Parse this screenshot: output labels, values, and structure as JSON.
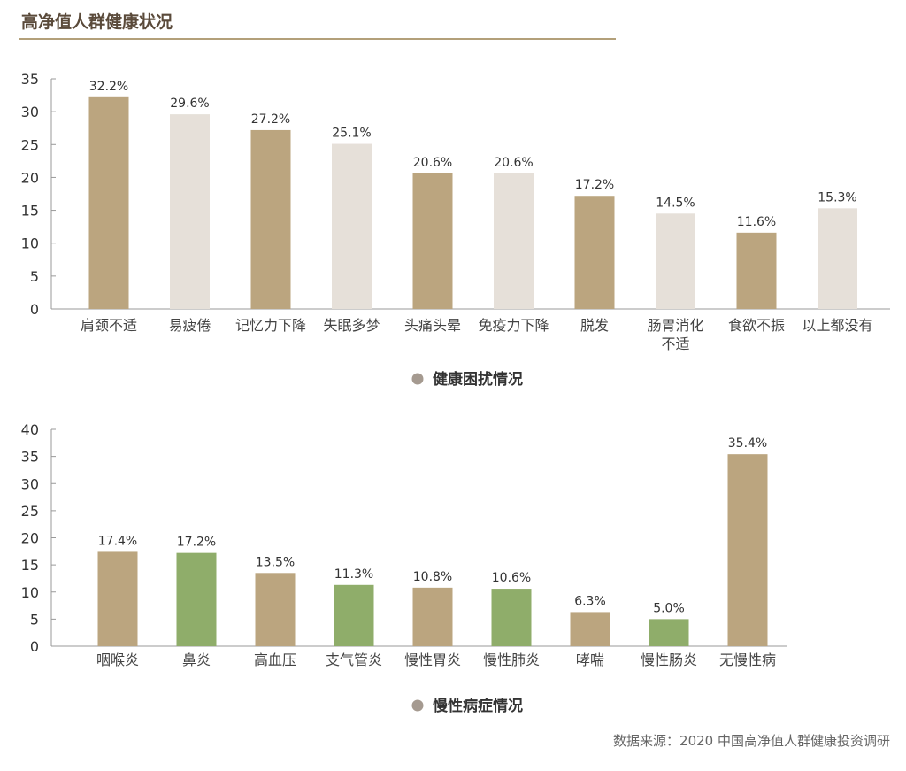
{
  "page": {
    "title": "高净值人群健康状况",
    "source": "数据来源：2020 中国高净值人群健康投资调研"
  },
  "colors": {
    "tan": "#bba57f",
    "light": "#e6e0d9",
    "green": "#8fad6a",
    "legend_dot": "#a59a90",
    "axis": "#999999"
  },
  "chart_data": [
    {
      "type": "bar",
      "legend": "健康困扰情况",
      "categories": [
        [
          "肩颈不适"
        ],
        [
          "易疲倦"
        ],
        [
          "记忆力下降"
        ],
        [
          "失眠多梦"
        ],
        [
          "头痛头晕"
        ],
        [
          "免疫力下降"
        ],
        [
          "脱发"
        ],
        [
          "肠胃消化",
          "不适"
        ],
        [
          "食欲不振"
        ],
        [
          "以上都没有"
        ]
      ],
      "values": [
        32.2,
        29.6,
        27.2,
        25.1,
        20.6,
        20.6,
        17.2,
        14.5,
        11.6,
        15.3
      ],
      "value_labels": [
        "32.2%",
        "29.6%",
        "27.2%",
        "25.1%",
        "20.6%",
        "20.6%",
        "17.2%",
        "14.5%",
        "11.6%",
        "15.3%"
      ],
      "bar_colors": [
        "tan",
        "light",
        "tan",
        "light",
        "tan",
        "light",
        "tan",
        "light",
        "tan",
        "light"
      ],
      "ylim": [
        0,
        35
      ],
      "yticks": [
        0,
        5,
        10,
        15,
        20,
        25,
        30,
        35
      ]
    },
    {
      "type": "bar",
      "legend": "慢性病症情况",
      "categories": [
        [
          "咽喉炎"
        ],
        [
          "鼻炎"
        ],
        [
          "高血压"
        ],
        [
          "支气管炎"
        ],
        [
          "慢性胃炎"
        ],
        [
          "慢性肺炎"
        ],
        [
          "哮喘"
        ],
        [
          "慢性肠炎"
        ],
        [
          "无慢性病"
        ]
      ],
      "values": [
        17.4,
        17.2,
        13.5,
        11.3,
        10.8,
        10.6,
        6.3,
        5.0,
        35.4
      ],
      "value_labels": [
        "17.4%",
        "17.2%",
        "13.5%",
        "11.3%",
        "10.8%",
        "10.6%",
        "6.3%",
        "5.0%",
        "35.4%"
      ],
      "bar_colors": [
        "tan",
        "green",
        "tan",
        "green",
        "tan",
        "green",
        "tan",
        "green",
        "tan"
      ],
      "ylim": [
        0,
        40
      ],
      "yticks": [
        0,
        5,
        10,
        15,
        20,
        25,
        30,
        35,
        40
      ]
    }
  ]
}
